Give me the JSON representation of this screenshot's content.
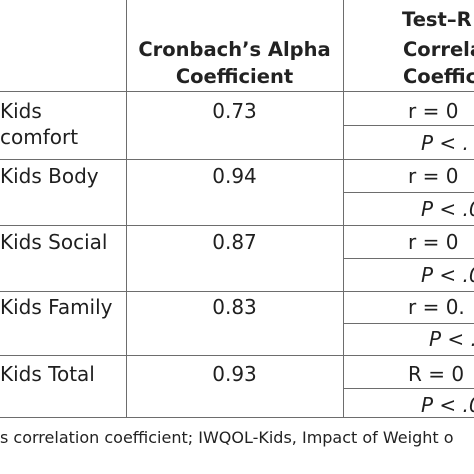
{
  "table": {
    "headers": {
      "alpha": [
        "Cronbach’s Alpha",
        "Coefficient"
      ],
      "retest": [
        "Test–R",
        "Correla",
        "Coeffic"
      ]
    },
    "rows": [
      {
        "label": [
          "Kids",
          "comfort"
        ],
        "alpha": "0.73",
        "r": "r = 0",
        "p": "P < ."
      },
      {
        "label": [
          "Kids Body"
        ],
        "alpha": "0.94",
        "r": "r = 0",
        "p": "P < .0"
      },
      {
        "label": [
          "Kids Social"
        ],
        "alpha": "0.87",
        "r": "r = 0",
        "p": "P < .0"
      },
      {
        "label": [
          "Kids Family"
        ],
        "alpha": "0.83",
        "r": "r = 0.",
        "p": "P < ."
      },
      {
        "label": [
          "Kids Total"
        ],
        "alpha": "0.93",
        "r": "R = 0",
        "p": "P < .0"
      }
    ]
  },
  "footnote": "s correlation coefficient; IWQOL-Kids, Impact of Weight o"
}
